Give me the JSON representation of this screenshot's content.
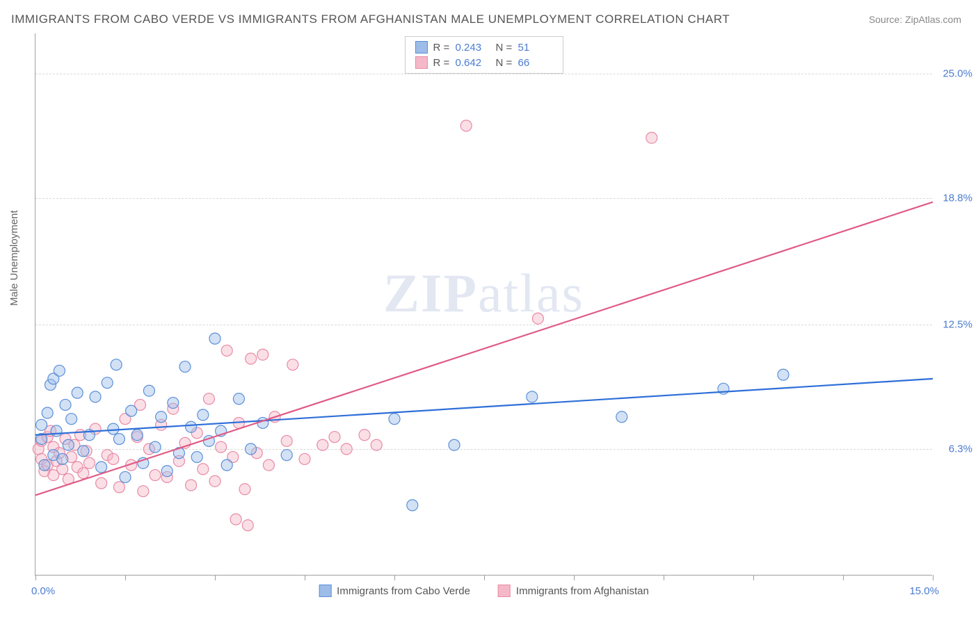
{
  "title": "IMMIGRANTS FROM CABO VERDE VS IMMIGRANTS FROM AFGHANISTAN MALE UNEMPLOYMENT CORRELATION CHART",
  "source": "Source: ZipAtlas.com",
  "ylabel": "Male Unemployment",
  "watermark_zip": "ZIP",
  "watermark_atlas": "atlas",
  "chart": {
    "type": "scatter",
    "xlim": [
      0,
      15
    ],
    "ylim": [
      0,
      27
    ],
    "xtick_positions": [
      0,
      1.5,
      3.0,
      4.5,
      6.0,
      7.5,
      9.0,
      10.5,
      12.0,
      13.5,
      15.0
    ],
    "ytick_labels": [
      {
        "value": 6.3,
        "label": "6.3%"
      },
      {
        "value": 12.5,
        "label": "12.5%"
      },
      {
        "value": 18.8,
        "label": "18.8%"
      },
      {
        "value": 25.0,
        "label": "25.0%"
      }
    ],
    "xaxis_min_label": "0.0%",
    "xaxis_max_label": "15.0%",
    "background_color": "#ffffff",
    "grid_color": "#d8d8d8"
  },
  "series": {
    "cabo": {
      "label": "Immigrants from Cabo Verde",
      "fill": "#9dbce8",
      "stroke": "#5a8fd8",
      "r_label": "R =",
      "r_value": "0.243",
      "n_label": "N =",
      "n_value": "51",
      "trend": {
        "x1": 0,
        "y1": 7.0,
        "x2": 15,
        "y2": 9.8,
        "color": "#2e6fd8"
      },
      "points": [
        [
          0.1,
          6.8
        ],
        [
          0.1,
          7.5
        ],
        [
          0.15,
          5.5
        ],
        [
          0.2,
          8.1
        ],
        [
          0.25,
          9.5
        ],
        [
          0.3,
          6.0
        ],
        [
          0.3,
          9.8
        ],
        [
          0.35,
          7.2
        ],
        [
          0.4,
          10.2
        ],
        [
          0.45,
          5.8
        ],
        [
          0.5,
          8.5
        ],
        [
          0.55,
          6.5
        ],
        [
          0.6,
          7.8
        ],
        [
          0.7,
          9.1
        ],
        [
          0.8,
          6.2
        ],
        [
          0.9,
          7.0
        ],
        [
          1.0,
          8.9
        ],
        [
          1.1,
          5.4
        ],
        [
          1.2,
          9.6
        ],
        [
          1.3,
          7.3
        ],
        [
          1.35,
          10.5
        ],
        [
          1.4,
          6.8
        ],
        [
          1.5,
          4.9
        ],
        [
          1.6,
          8.2
        ],
        [
          1.7,
          7.0
        ],
        [
          1.8,
          5.6
        ],
        [
          1.9,
          9.2
        ],
        [
          2.0,
          6.4
        ],
        [
          2.1,
          7.9
        ],
        [
          2.2,
          5.2
        ],
        [
          2.3,
          8.6
        ],
        [
          2.4,
          6.1
        ],
        [
          2.5,
          10.4
        ],
        [
          2.6,
          7.4
        ],
        [
          2.7,
          5.9
        ],
        [
          2.8,
          8.0
        ],
        [
          2.9,
          6.7
        ],
        [
          3.0,
          11.8
        ],
        [
          3.1,
          7.2
        ],
        [
          3.2,
          5.5
        ],
        [
          3.4,
          8.8
        ],
        [
          3.6,
          6.3
        ],
        [
          3.8,
          7.6
        ],
        [
          4.2,
          6.0
        ],
        [
          6.0,
          7.8
        ],
        [
          6.3,
          3.5
        ],
        [
          7.0,
          6.5
        ],
        [
          8.3,
          8.9
        ],
        [
          9.8,
          7.9
        ],
        [
          11.5,
          9.3
        ],
        [
          12.5,
          10.0
        ]
      ]
    },
    "afgh": {
      "label": "Immigrants from Afghanistan",
      "fill": "#f4b8c8",
      "stroke": "#e88aa5",
      "r_label": "R =",
      "r_value": "0.642",
      "n_label": "N =",
      "n_value": "66",
      "trend": {
        "x1": 0,
        "y1": 4.0,
        "x2": 15,
        "y2": 18.6,
        "color": "#e05a85"
      },
      "points": [
        [
          0.05,
          6.3
        ],
        [
          0.1,
          5.8
        ],
        [
          0.1,
          6.7
        ],
        [
          0.15,
          5.2
        ],
        [
          0.2,
          6.9
        ],
        [
          0.2,
          5.5
        ],
        [
          0.25,
          7.2
        ],
        [
          0.3,
          5.0
        ],
        [
          0.3,
          6.4
        ],
        [
          0.35,
          5.7
        ],
        [
          0.4,
          6.1
        ],
        [
          0.45,
          5.3
        ],
        [
          0.5,
          6.8
        ],
        [
          0.55,
          4.8
        ],
        [
          0.6,
          5.9
        ],
        [
          0.65,
          6.5
        ],
        [
          0.7,
          5.4
        ],
        [
          0.75,
          7.0
        ],
        [
          0.8,
          5.1
        ],
        [
          0.85,
          6.2
        ],
        [
          0.9,
          5.6
        ],
        [
          1.0,
          7.3
        ],
        [
          1.1,
          4.6
        ],
        [
          1.2,
          6.0
        ],
        [
          1.3,
          5.8
        ],
        [
          1.4,
          4.4
        ],
        [
          1.5,
          7.8
        ],
        [
          1.6,
          5.5
        ],
        [
          1.7,
          6.9
        ],
        [
          1.75,
          8.5
        ],
        [
          1.8,
          4.2
        ],
        [
          1.9,
          6.3
        ],
        [
          2.0,
          5.0
        ],
        [
          2.1,
          7.5
        ],
        [
          2.2,
          4.9
        ],
        [
          2.3,
          8.3
        ],
        [
          2.4,
          5.7
        ],
        [
          2.5,
          6.6
        ],
        [
          2.6,
          4.5
        ],
        [
          2.7,
          7.1
        ],
        [
          2.8,
          5.3
        ],
        [
          2.9,
          8.8
        ],
        [
          3.0,
          4.7
        ],
        [
          3.1,
          6.4
        ],
        [
          3.2,
          11.2
        ],
        [
          3.3,
          5.9
        ],
        [
          3.35,
          2.8
        ],
        [
          3.4,
          7.6
        ],
        [
          3.5,
          4.3
        ],
        [
          3.55,
          2.5
        ],
        [
          3.6,
          10.8
        ],
        [
          3.7,
          6.1
        ],
        [
          3.8,
          11.0
        ],
        [
          3.9,
          5.5
        ],
        [
          4.0,
          7.9
        ],
        [
          4.2,
          6.7
        ],
        [
          4.3,
          10.5
        ],
        [
          4.5,
          5.8
        ],
        [
          4.8,
          6.5
        ],
        [
          5.0,
          6.9
        ],
        [
          5.2,
          6.3
        ],
        [
          5.5,
          7.0
        ],
        [
          5.7,
          6.5
        ],
        [
          7.2,
          22.4
        ],
        [
          8.4,
          12.8
        ],
        [
          10.3,
          21.8
        ]
      ]
    }
  }
}
